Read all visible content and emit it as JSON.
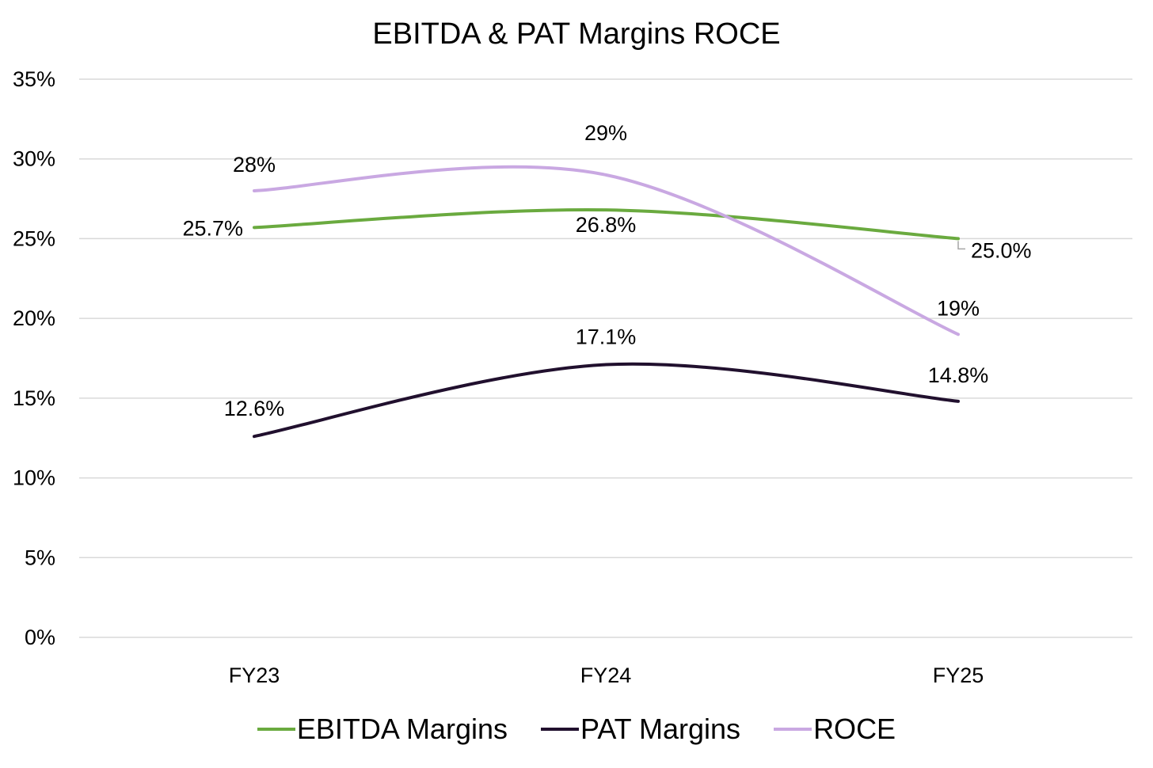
{
  "chart_data": {
    "type": "line",
    "title": "EBITDA & PAT Margins ROCE",
    "categories": [
      "FY23",
      "FY24",
      "FY25"
    ],
    "ylim": [
      0,
      35
    ],
    "yticks": [
      "0%",
      "5%",
      "10%",
      "15%",
      "20%",
      "25%",
      "30%",
      "35%"
    ],
    "ytick_values": [
      0,
      5,
      10,
      15,
      20,
      25,
      30,
      35
    ],
    "grid": true,
    "legend_position": "bottom",
    "series": [
      {
        "name": "EBITDA Margins",
        "color": "#6aaa3f",
        "values": [
          25.7,
          26.8,
          25.0
        ],
        "labels": [
          "25.7%",
          "26.8%",
          "25.0%"
        ]
      },
      {
        "name": "PAT Margins",
        "color": "#21102e",
        "values": [
          12.6,
          17.1,
          14.8
        ],
        "labels": [
          "12.6%",
          "17.1%",
          "14.8%"
        ]
      },
      {
        "name": "ROCE",
        "color": "#c9a8e2",
        "values": [
          28,
          29,
          19
        ],
        "labels": [
          "28%",
          "29%",
          "19%"
        ]
      }
    ]
  }
}
